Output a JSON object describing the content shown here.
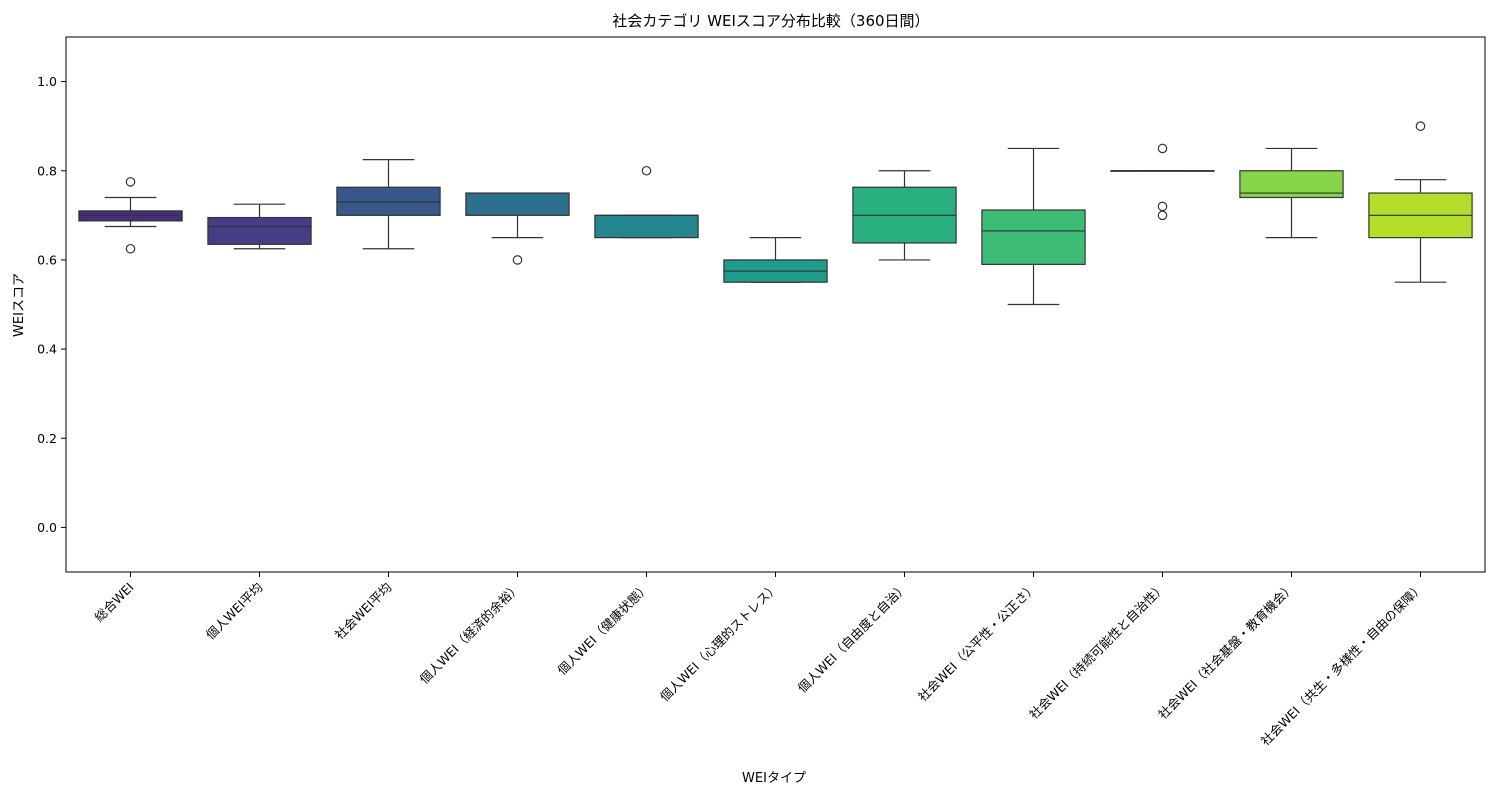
{
  "chart_data": {
    "type": "box",
    "title": "社会カテゴリ WEIスコア分布比較（360日間）",
    "xlabel": "WEIタイプ",
    "ylabel": "WEIスコア",
    "ylim": [
      -0.1,
      1.1
    ],
    "yticks": [
      "0.0",
      "0.2",
      "0.4",
      "0.6",
      "0.8",
      "1.0"
    ],
    "grid": false,
    "categories": [
      "総合WEI",
      "個人WEI平均",
      "社会WEI平均",
      "個人WEI（経済的余裕）",
      "個人WEI（健康状態）",
      "個人WEI（心理的ストレス）",
      "個人WEI（自由度と自治）",
      "社会WEI（公平性・公正さ）",
      "社会WEI（持続可能性と自治性）",
      "社会WEI（社会基盤・教育機会）",
      "社会WEI（共生・多様性・自由の保障）"
    ],
    "boxes": [
      {
        "whisker_low": 0.675,
        "q1": 0.6875,
        "median": 0.7,
        "q3": 0.71,
        "whisker_high": 0.74,
        "outliers": [
          0.775,
          0.625
        ],
        "color": "#472d7b"
      },
      {
        "whisker_low": 0.625,
        "q1": 0.635,
        "median": 0.675,
        "q3": 0.695,
        "whisker_high": 0.725,
        "outliers": [],
        "color": "#433e85"
      },
      {
        "whisker_low": 0.625,
        "q1": 0.7,
        "median": 0.73,
        "q3": 0.763,
        "whisker_high": 0.825,
        "outliers": [],
        "color": "#38588c"
      },
      {
        "whisker_low": 0.65,
        "q1": 0.7,
        "median": 0.75,
        "q3": 0.75,
        "whisker_high": 0.75,
        "outliers": [
          0.6
        ],
        "color": "#2d708e"
      },
      {
        "whisker_low": 0.65,
        "q1": 0.65,
        "median": 0.7,
        "q3": 0.7,
        "whisker_high": 0.7,
        "outliers": [
          0.8
        ],
        "color": "#25858e"
      },
      {
        "whisker_low": 0.55,
        "q1": 0.55,
        "median": 0.575,
        "q3": 0.6,
        "whisker_high": 0.65,
        "outliers": [],
        "color": "#1e9b8a"
      },
      {
        "whisker_low": 0.6,
        "q1": 0.638,
        "median": 0.7,
        "q3": 0.763,
        "whisker_high": 0.8,
        "outliers": [],
        "color": "#2ab07f"
      },
      {
        "whisker_low": 0.5,
        "q1": 0.59,
        "median": 0.665,
        "q3": 0.712,
        "whisker_high": 0.85,
        "outliers": [],
        "color": "#3cbc74"
      },
      {
        "whisker_low": 0.8,
        "q1": 0.8,
        "median": 0.8,
        "q3": 0.8,
        "whisker_high": 0.8,
        "outliers": [
          0.85,
          0.72,
          0.7
        ],
        "color": "#52c569"
      },
      {
        "whisker_low": 0.65,
        "q1": 0.74,
        "median": 0.75,
        "q3": 0.8,
        "whisker_high": 0.85,
        "outliers": [],
        "color": "#86d549"
      },
      {
        "whisker_low": 0.55,
        "q1": 0.65,
        "median": 0.7,
        "q3": 0.75,
        "whisker_high": 0.78,
        "outliers": [
          0.9
        ],
        "color": "#b5de2b"
      }
    ]
  }
}
